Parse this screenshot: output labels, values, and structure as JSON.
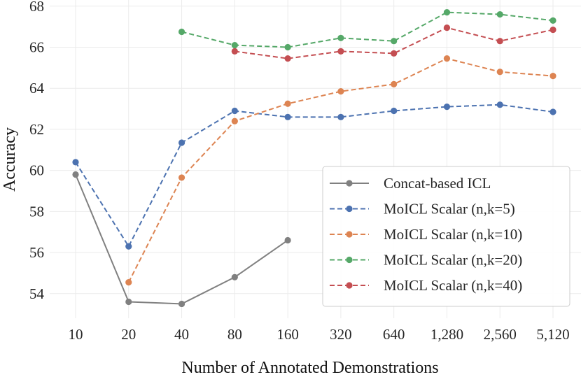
{
  "chart_data": {
    "type": "line",
    "title": "",
    "xlabel": "Number of Annotated Demonstrations",
    "ylabel": "Accuracy",
    "categories": [
      "10",
      "20",
      "40",
      "80",
      "160",
      "320",
      "640",
      "1,280",
      "2,560",
      "5,120"
    ],
    "ylim": [
      52.8,
      68.3
    ],
    "yticks": [
      54,
      56,
      58,
      60,
      62,
      64,
      66,
      68
    ],
    "grid": true,
    "legend_position": "bottom-right",
    "series": [
      {
        "name": "Concat-based ICL",
        "color": "#808080",
        "dash": "solid",
        "values": [
          59.8,
          53.6,
          53.5,
          54.8,
          56.6,
          null,
          null,
          null,
          null,
          null
        ]
      },
      {
        "name": "MoICL Scalar (n,k=5)",
        "color": "#4c72b0",
        "dash": "dashed",
        "values": [
          60.4,
          56.3,
          61.35,
          62.9,
          62.6,
          62.6,
          62.9,
          63.1,
          63.2,
          62.85
        ]
      },
      {
        "name": "MoICL Scalar (n,k=10)",
        "color": "#dd8452",
        "dash": "dashed",
        "values": [
          null,
          54.55,
          59.65,
          62.4,
          63.25,
          63.85,
          64.2,
          65.45,
          64.8,
          64.6
        ]
      },
      {
        "name": "MoICL Scalar (n,k=20)",
        "color": "#55a868",
        "dash": "dashed",
        "values": [
          null,
          null,
          66.75,
          66.1,
          66.0,
          66.45,
          66.3,
          67.7,
          67.6,
          67.3
        ]
      },
      {
        "name": "MoICL Scalar (n,k=40)",
        "color": "#c44e52",
        "dash": "dashed",
        "values": [
          null,
          null,
          null,
          65.8,
          65.45,
          65.8,
          65.7,
          66.95,
          66.3,
          66.85
        ]
      }
    ]
  }
}
